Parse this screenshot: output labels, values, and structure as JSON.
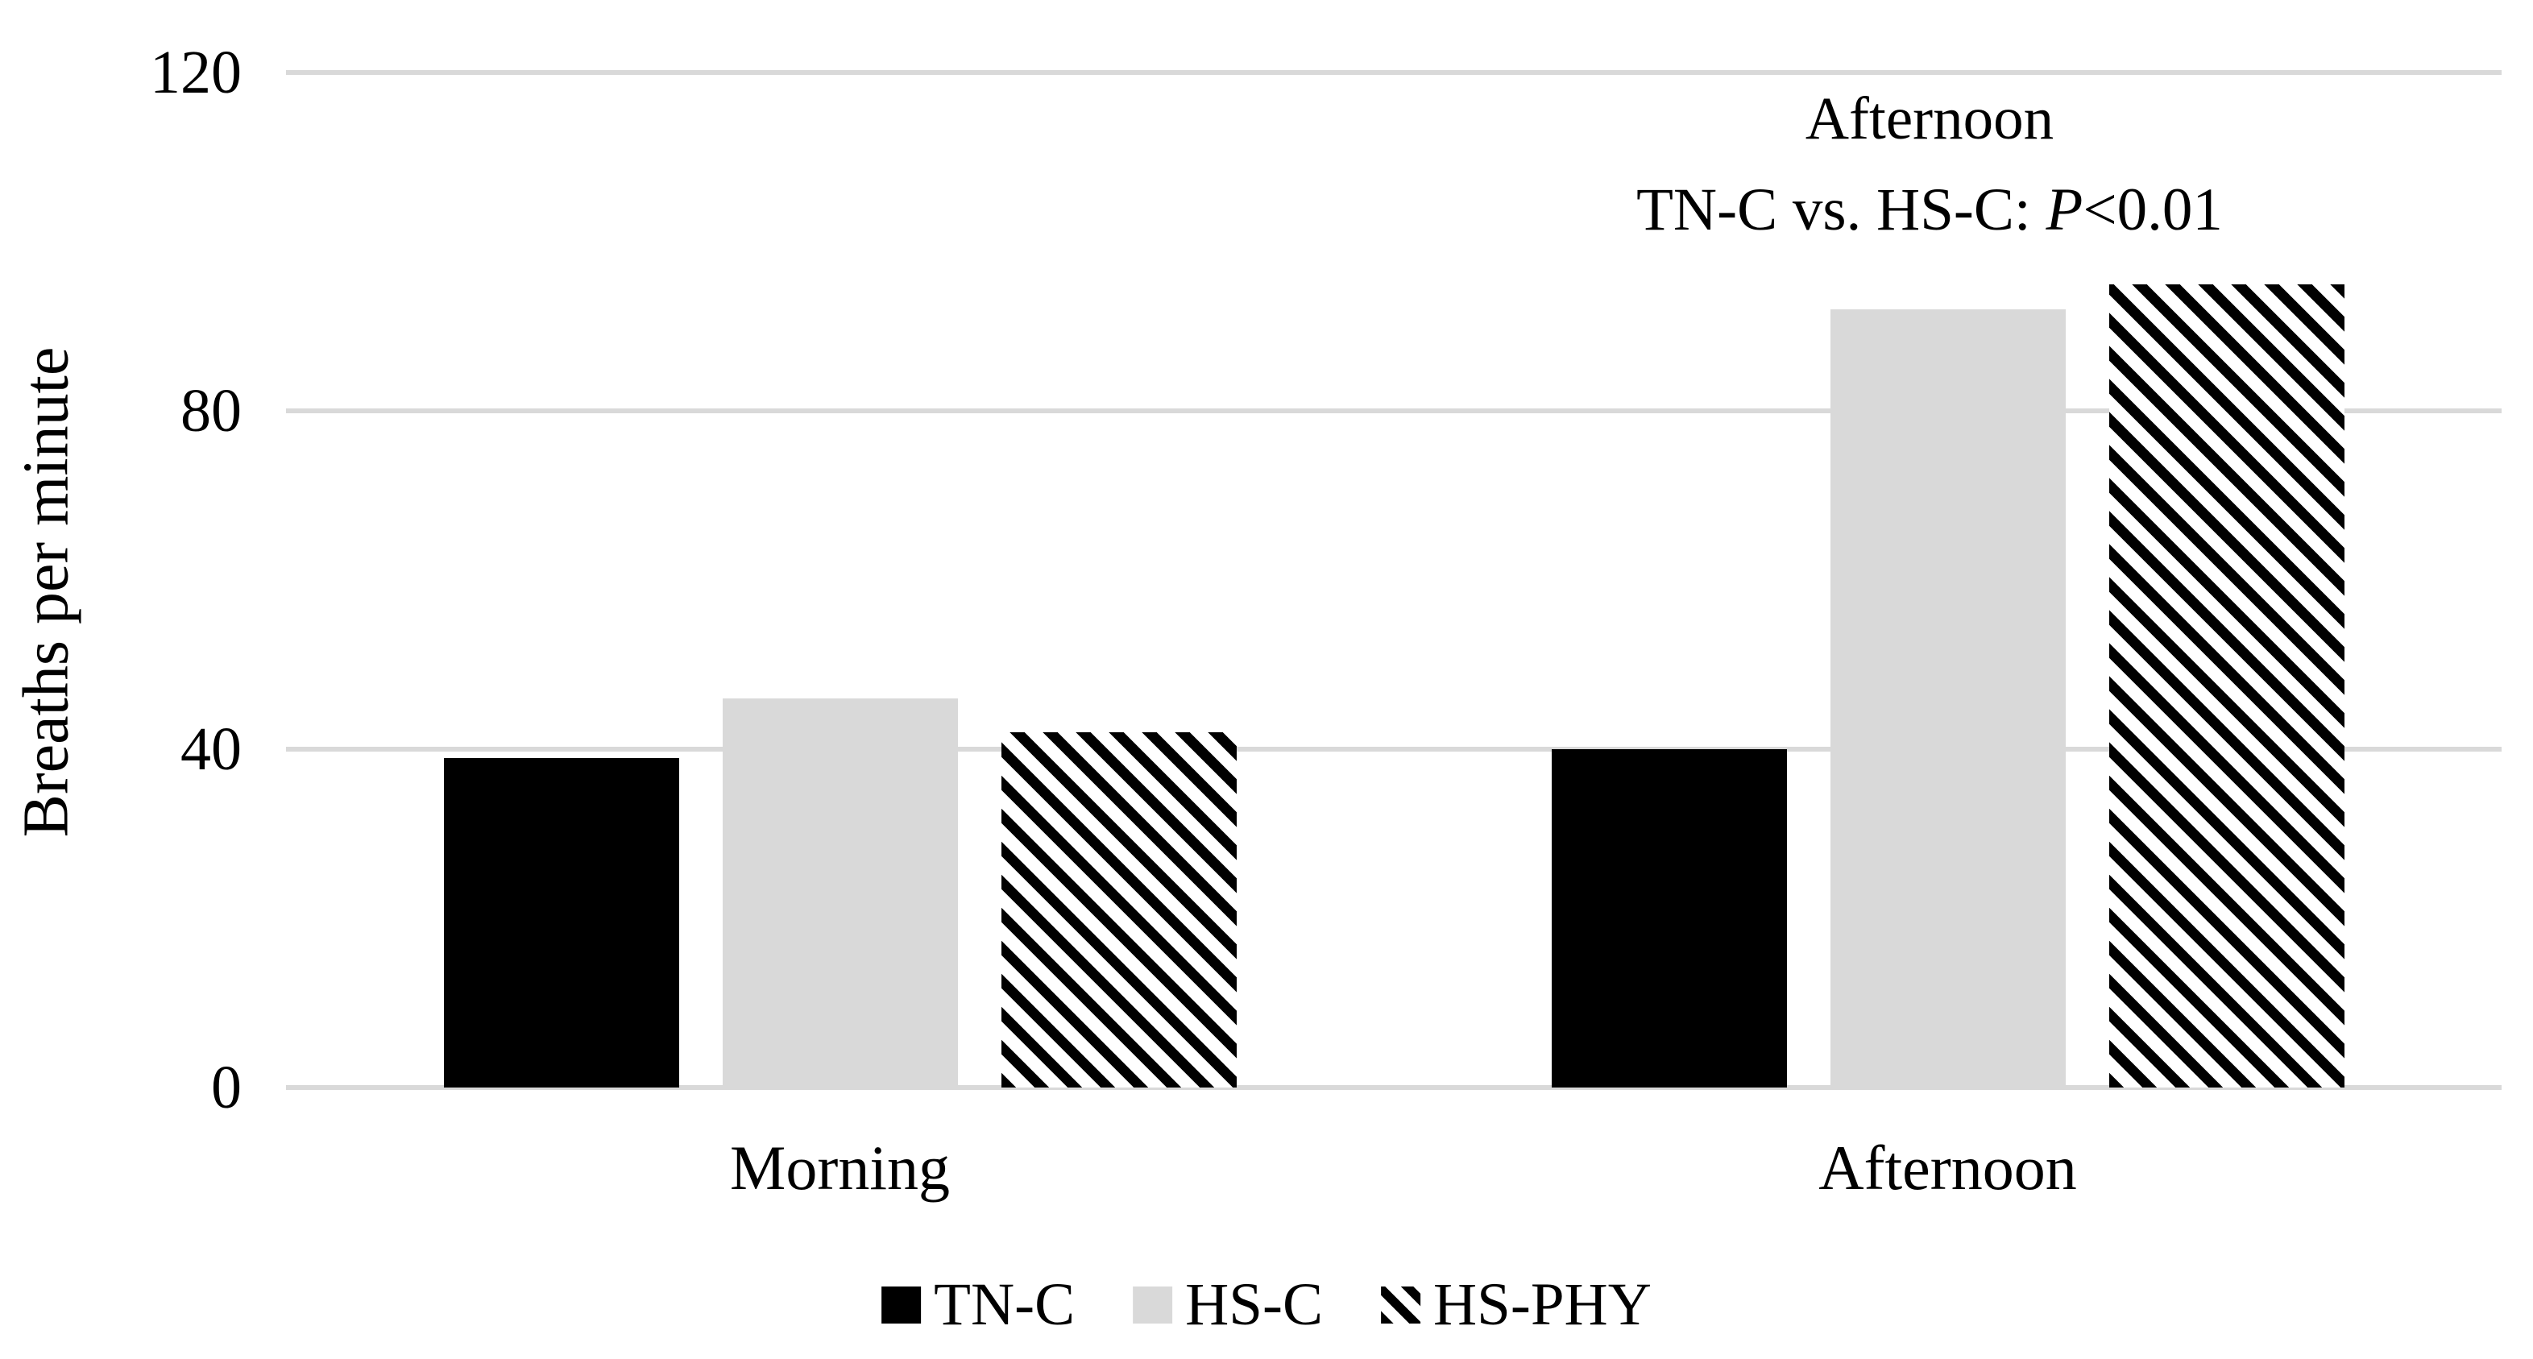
{
  "chart_data": {
    "type": "bar",
    "categories": [
      "Morning",
      "Afternoon"
    ],
    "series": [
      {
        "name": "TN-C",
        "style": "solid-black",
        "values": [
          39,
          40
        ]
      },
      {
        "name": "HS-C",
        "style": "solid-gray",
        "values": [
          46,
          92
        ]
      },
      {
        "name": "HS-PHY",
        "style": "diagonal-hatch",
        "values": [
          42,
          95
        ]
      }
    ],
    "title": "",
    "xlabel": "",
    "ylabel": "Breaths per minute",
    "ylim": [
      0,
      120
    ],
    "yticks": [
      0,
      40,
      80,
      120
    ],
    "grid": true,
    "legend_position": "bottom-center",
    "annotation": {
      "line1": "Afternoon",
      "line2_prefix": "TN-C vs. HS-C: ",
      "line2_italic": "P",
      "line2_suffix": "<0.01"
    }
  },
  "colors": {
    "bar_black": "#000000",
    "bar_gray": "#D9D9D9",
    "gridline": "#D9D9D9",
    "text": "#000000",
    "background": "#FFFFFF"
  }
}
